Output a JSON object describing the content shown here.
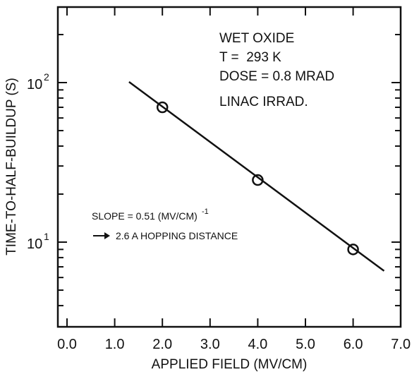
{
  "chart_data": {
    "type": "line",
    "x_scale": "linear",
    "y_scale": "log",
    "xlabel": "APPLIED FIELD (MV/CM)",
    "ylabel": "TIME-TO-HALF-BUILDUP (S)",
    "xlim": [
      0.0,
      7.0
    ],
    "ylim": [
      3,
      300
    ],
    "x_ticks": [
      "0.0",
      "1.0",
      "2.0",
      "3.0",
      "4.0",
      "5.0",
      "6.0",
      "7.0"
    ],
    "y_tick_labels": [
      {
        "value": 10,
        "base": "10",
        "exp": "1"
      },
      {
        "value": 100,
        "base": "10",
        "exp": "2"
      }
    ],
    "grid": false,
    "series": [
      {
        "marker": "open-circle",
        "line": false,
        "points": [
          {
            "x": 2.0,
            "y": 70
          },
          {
            "x": 4.0,
            "y": 24.5
          },
          {
            "x": 6.0,
            "y": 9.0
          }
        ]
      },
      {
        "marker": "none",
        "line": true,
        "points": [
          {
            "x": 1.3,
            "y": 101
          },
          {
            "x": 6.65,
            "y": 6.6
          }
        ]
      }
    ],
    "annotations": {
      "conditions": [
        "WET OXIDE",
        "T =  293 K",
        "DOSE = 0.8 MRAD",
        "LINAC IRRAD."
      ],
      "slope_text": "SLOPE = 0.51 (MV/CM)",
      "slope_superscript": "-1",
      "hopping_text": "2.6 A HOPPING DISTANCE"
    }
  }
}
